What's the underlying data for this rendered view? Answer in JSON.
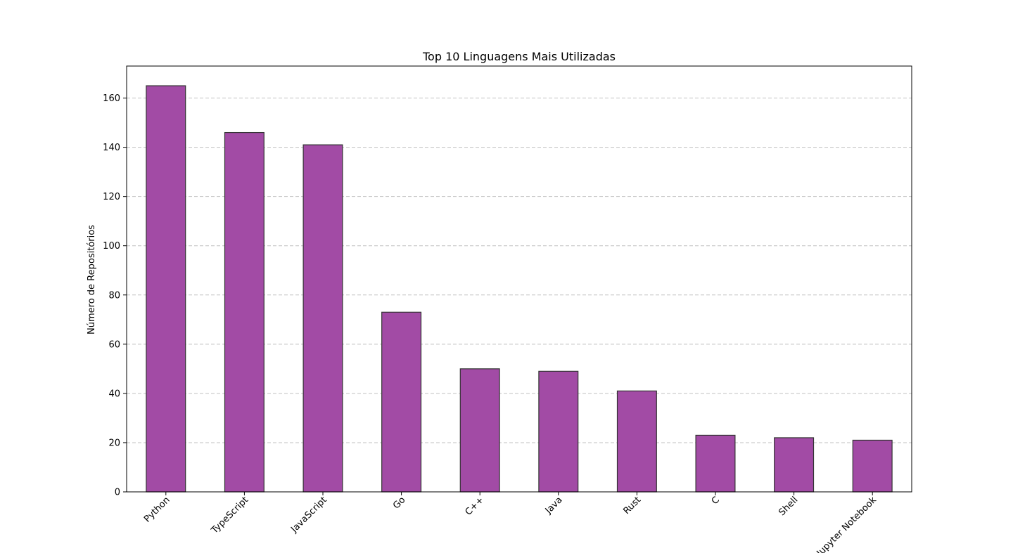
{
  "chart_data": {
    "type": "bar",
    "title": "Top 10 Linguagens Mais Utilizadas",
    "xlabel": "",
    "ylabel": "Número de Repositórios",
    "categories": [
      "Python",
      "TypeScript",
      "JavaScript",
      "Go",
      "C++",
      "Java",
      "Rust",
      "C",
      "Shell",
      "Jupyter Notebook"
    ],
    "values": [
      165,
      146,
      141,
      73,
      50,
      49,
      41,
      23,
      22,
      21
    ],
    "ylim": [
      0,
      173
    ],
    "yticks": [
      0,
      20,
      40,
      60,
      80,
      100,
      120,
      140,
      160
    ],
    "grid": "y-dashed",
    "bar_color": "#a24ba5",
    "edge_color": "#333333",
    "grid_color": "#c0c0c0"
  }
}
